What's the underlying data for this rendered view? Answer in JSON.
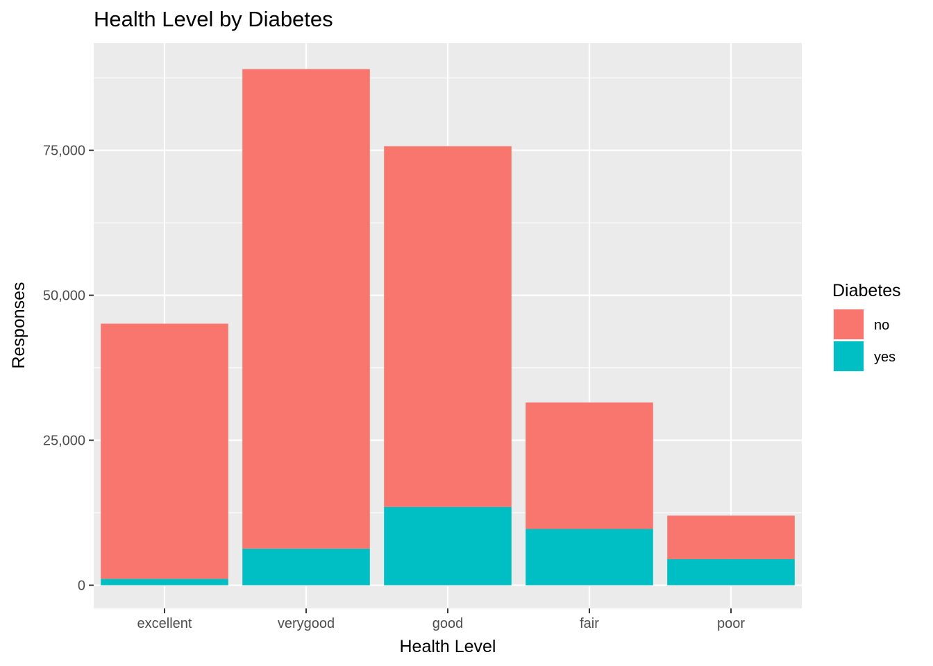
{
  "chart_data": {
    "type": "bar",
    "stacked": true,
    "title": "Health Level by Diabetes",
    "xlabel": "Health Level",
    "ylabel": "Responses",
    "categories": [
      "excellent",
      "verygood",
      "good",
      "fair",
      "poor"
    ],
    "series": [
      {
        "name": "no",
        "color": "#F8766D",
        "values": [
          44000,
          82700,
          62200,
          21800,
          7500
        ]
      },
      {
        "name": "yes",
        "color": "#00BFC4",
        "values": [
          1100,
          6300,
          13500,
          9700,
          4500
        ]
      }
    ],
    "ylim": [
      -4000,
      93500
    ],
    "yticks": [
      0,
      25000,
      50000,
      75000
    ],
    "ytick_labels": [
      "0",
      "25,000",
      "50,000",
      "75,000"
    ],
    "legend": {
      "title": "Diabetes",
      "position": "right",
      "entries": [
        "no",
        "yes"
      ]
    },
    "grid": true,
    "panel_background": "#EBEBEB",
    "grid_color": "#FFFFFF"
  }
}
